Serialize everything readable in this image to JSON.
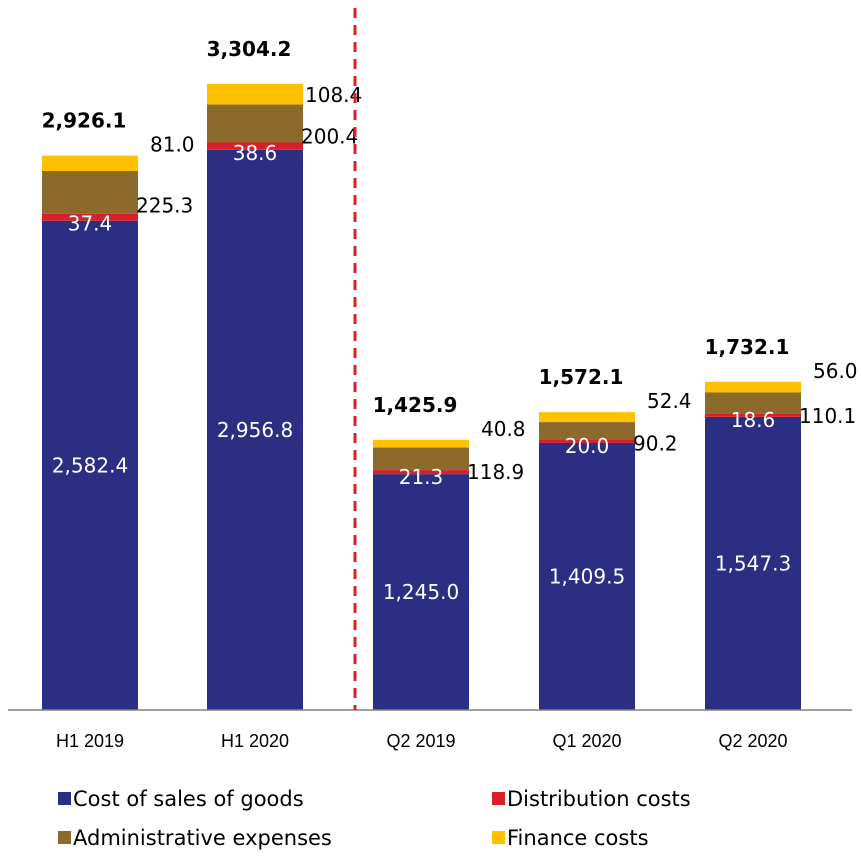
{
  "chart_data": {
    "type": "bar",
    "stacked": true,
    "categories": [
      "H1 2019",
      "H1 2020",
      "Q2 2019",
      "Q1 2020",
      "Q2 2020"
    ],
    "series": [
      {
        "name": "Cost of sales of goods",
        "color": "#2b2e83",
        "values": [
          2582.4,
          2956.8,
          1245.0,
          1409.5,
          1547.3
        ],
        "labels": [
          "2,582.4",
          "2,956.8",
          "1,245.0",
          "1,409.5",
          "1,547.3"
        ]
      },
      {
        "name": "Distribution costs",
        "color": "#d7202a",
        "values": [
          37.4,
          38.6,
          21.3,
          20.0,
          18.6
        ],
        "labels": [
          "37.4",
          "38.6",
          "21.3",
          "20.0",
          "18.6"
        ]
      },
      {
        "name": "Administrative expenses",
        "color": "#8b6a2b",
        "values": [
          225.3,
          200.4,
          118.9,
          90.2,
          110.1
        ],
        "labels": [
          "225.3",
          "200.4",
          "118.9",
          "90.2",
          "110.1"
        ]
      },
      {
        "name": "Finance costs",
        "color": "#ffc000",
        "values": [
          81.0,
          108.4,
          40.8,
          52.4,
          56.0
        ],
        "labels": [
          "81.0",
          "108.4",
          "40.8",
          "52.4",
          "56.0"
        ]
      }
    ],
    "totals": [
      "2,926.1",
      "3,304.2",
      "1,425.9",
      "1,572.1",
      "1,732.1"
    ],
    "divider_after_category": "H1 2020",
    "divider_color": "#e02020",
    "legend_position": "bottom",
    "grid": false,
    "ylim": [
      0,
      3304.2
    ]
  }
}
